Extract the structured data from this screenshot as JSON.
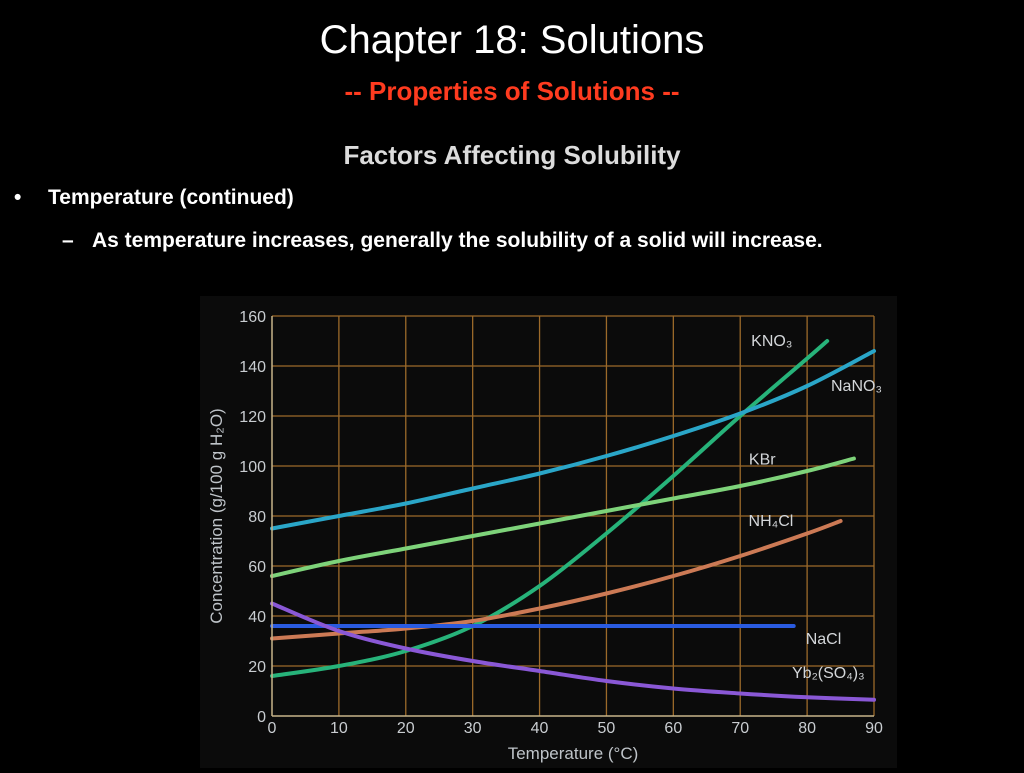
{
  "slide": {
    "title": "Chapter 18:  Solutions",
    "subtitle": "-- Properties of Solutions --",
    "heading": "Factors Affecting Solubility",
    "bullet": "•",
    "bullet_text": "Temperature (continued)",
    "sub_dash": "–",
    "sub_text": "As temperature increases, generally the solubility of a solid will increase."
  },
  "chart_data": {
    "type": "line",
    "xlabel": "Temperature (°C)",
    "ylabel": "Concentration (g/100 g H₂O)",
    "xlim": [
      0,
      90
    ],
    "ylim": [
      0,
      160
    ],
    "x_ticks": [
      "0",
      "10",
      "20",
      "30",
      "40",
      "50",
      "60",
      "70",
      "80",
      "90"
    ],
    "y_ticks": [
      "0",
      "20",
      "40",
      "60",
      "80",
      "100",
      "120",
      "140",
      "160"
    ],
    "grid": true,
    "series": [
      {
        "name": "KNO₃",
        "color": "#27b37a",
        "x": [
          0,
          10,
          20,
          30,
          40,
          50,
          60,
          70,
          80,
          83
        ],
        "y": [
          16,
          20,
          26,
          36,
          52,
          73,
          96,
          120,
          143,
          150
        ]
      },
      {
        "name": "NaNO₃",
        "color": "#2aa6c8",
        "x": [
          0,
          10,
          20,
          30,
          40,
          50,
          60,
          70,
          80,
          90
        ],
        "y": [
          75,
          80,
          85,
          91,
          97,
          104,
          112,
          121,
          132,
          146
        ]
      },
      {
        "name": "KBr",
        "color": "#7ed37a",
        "x": [
          0,
          10,
          20,
          30,
          40,
          50,
          60,
          70,
          80,
          87
        ],
        "y": [
          56,
          62,
          67,
          72,
          77,
          82,
          87,
          92,
          98,
          103
        ]
      },
      {
        "name": "NH₄Cl",
        "color": "#cc7a55",
        "x": [
          0,
          10,
          20,
          30,
          40,
          50,
          60,
          70,
          80,
          85
        ],
        "y": [
          31,
          33,
          35,
          38,
          43,
          49,
          56,
          64,
          73,
          78
        ]
      },
      {
        "name": "NaCl",
        "color": "#2a5be0",
        "x": [
          0,
          10,
          20,
          30,
          40,
          50,
          60,
          70,
          78
        ],
        "y": [
          36,
          36,
          36,
          36,
          36,
          36,
          36,
          36,
          36
        ]
      },
      {
        "name": "Yb₂(SO₄)₃",
        "color": "#8a58d6",
        "x": [
          0,
          10,
          20,
          30,
          40,
          50,
          60,
          70,
          80,
          90
        ],
        "y": [
          45,
          34,
          27,
          22,
          18,
          14,
          11,
          9,
          7.5,
          6.5
        ]
      }
    ]
  }
}
